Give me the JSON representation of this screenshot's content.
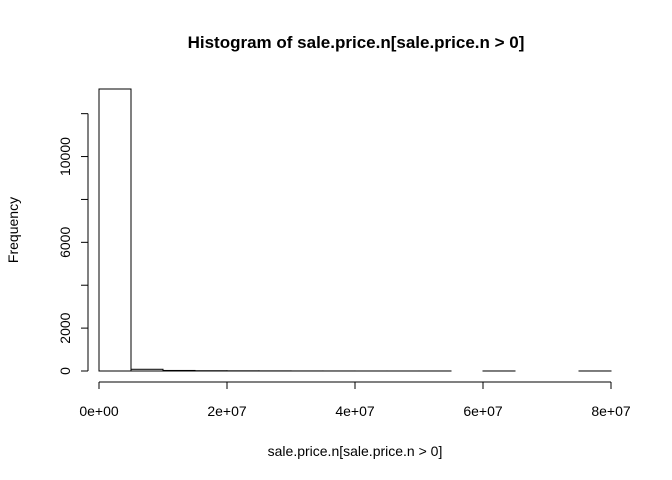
{
  "chart_data": {
    "type": "bar",
    "title": "Histogram of sale.price.n[sale.price.n > 0]",
    "xlabel": "sale.price.n[sale.price.n > 0]",
    "ylabel": "Frequency",
    "bin_width": 5000000,
    "bin_starts": [
      0,
      5000000,
      10000000,
      15000000,
      20000000,
      25000000,
      30000000,
      35000000,
      40000000,
      45000000,
      50000000,
      55000000,
      60000000,
      65000000,
      70000000,
      75000000
    ],
    "values": [
      13150,
      80,
      25,
      12,
      8,
      5,
      3,
      2,
      1,
      1,
      1,
      0,
      1,
      0,
      0,
      1
    ],
    "xlim": [
      0,
      80000000
    ],
    "ylim": [
      0,
      13150
    ],
    "x_ticks": [
      0,
      20000000,
      40000000,
      60000000,
      80000000
    ],
    "x_tick_labels": [
      "0e+00",
      "2e+07",
      "4e+07",
      "6e+07",
      "8e+07"
    ],
    "y_ticks": [
      0,
      2000,
      6000,
      10000
    ],
    "y_tick_labels": [
      "0",
      "2000",
      "6000",
      "10000"
    ],
    "y_minor_ticks": [
      4000,
      8000,
      12000
    ],
    "grid": false
  }
}
